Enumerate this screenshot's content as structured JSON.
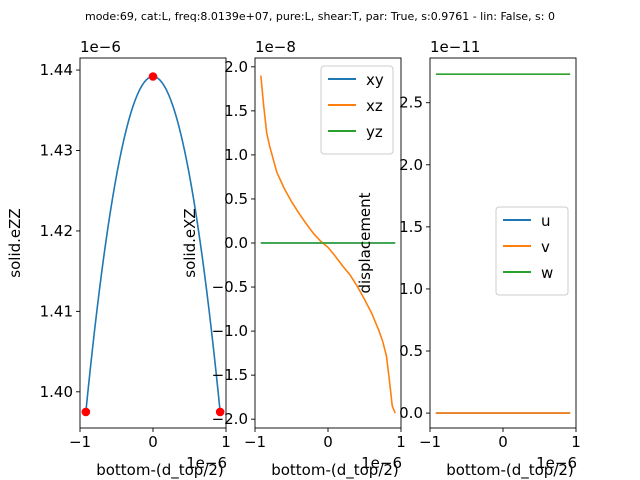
{
  "figure_title": "mode:69, cat:L, freq:8.0139e+07, pure:L, shear:T, par: True, s:0.9761 - lin: False, s: 0",
  "colors": {
    "blue": "#1f77b4",
    "orange": "#ff7f0e",
    "green": "#2ca02c",
    "marker": "#ff0000"
  },
  "chart_data": [
    {
      "type": "line",
      "xlabel": "bottom-(d_top/2)",
      "ylabel": "solid.eZZ",
      "x_offset_text": "1e−6",
      "y_offset_text": "1e−6",
      "xlim": [
        -1.0,
        1.0
      ],
      "ylim": [
        1.3955,
        1.4415
      ],
      "x_ticks": [
        -1,
        0,
        1
      ],
      "x_tick_labels": [
        "−1",
        "0",
        "1"
      ],
      "y_ticks": [
        1.4,
        1.41,
        1.42,
        1.43,
        1.44
      ],
      "y_tick_labels": [
        "1.40",
        "1.41",
        "1.42",
        "1.43",
        "1.44"
      ],
      "series": [
        {
          "color": "blue",
          "kind": "parabola",
          "x_range": [
            -0.92,
            0.92
          ],
          "peak": 1.4392,
          "end": 1.3975
        },
        {
          "color": "marker",
          "kind": "markers",
          "points": [
            [
              -0.92,
              1.3975
            ],
            [
              0.0,
              1.4392
            ],
            [
              0.92,
              1.3975
            ]
          ]
        }
      ]
    },
    {
      "type": "line",
      "xlabel": "bottom-(d_top/2)",
      "ylabel": "solid.eXZ",
      "x_offset_text": "1e−6",
      "y_offset_text": "1e−8",
      "xlim": [
        -1.0,
        1.0
      ],
      "ylim": [
        -2.1,
        2.1
      ],
      "x_ticks": [
        -1,
        0,
        1
      ],
      "x_tick_labels": [
        "−1",
        "0",
        "1"
      ],
      "y_ticks": [
        -2.0,
        -1.5,
        -1.0,
        -0.5,
        0.0,
        0.5,
        1.0,
        1.5,
        2.0
      ],
      "y_tick_labels": [
        "−2.0",
        "−1.5",
        "−1.0",
        "−0.5",
        "0.0",
        "0.5",
        "1.0",
        "1.5",
        "2.0"
      ],
      "legend": {
        "position": "upper-right",
        "entries": [
          {
            "label": "xy",
            "color": "blue"
          },
          {
            "label": "xz",
            "color": "orange"
          },
          {
            "label": "yz",
            "color": "green"
          }
        ]
      },
      "series": [
        {
          "name": "xy",
          "color": "blue",
          "x": [
            -0.92,
            0.92
          ],
          "y": [
            0.0,
            0.0
          ]
        },
        {
          "name": "xz",
          "color": "orange",
          "x": [
            -0.92,
            -0.88,
            -0.84,
            -0.8,
            -0.75,
            -0.7,
            -0.6,
            -0.5,
            -0.4,
            -0.3,
            -0.2,
            -0.1,
            0.0,
            0.1,
            0.2,
            0.3,
            0.4,
            0.5,
            0.6,
            0.7,
            0.75,
            0.8,
            0.84,
            0.88,
            0.92
          ],
          "y": [
            1.9,
            1.55,
            1.25,
            1.1,
            0.95,
            0.8,
            0.62,
            0.47,
            0.34,
            0.22,
            0.11,
            0.02,
            -0.05,
            -0.15,
            -0.26,
            -0.36,
            -0.49,
            -0.64,
            -0.8,
            -1.0,
            -1.12,
            -1.28,
            -1.55,
            -1.85,
            -1.93
          ]
        },
        {
          "name": "yz",
          "color": "green",
          "x": [
            -0.92,
            0.92
          ],
          "y": [
            0.0,
            0.0
          ]
        }
      ]
    },
    {
      "type": "line",
      "xlabel": "bottom-(d_top/2)",
      "ylabel": "displacement",
      "x_offset_text": "1e−6",
      "y_offset_text": "1e−11",
      "xlim": [
        -1.0,
        1.0
      ],
      "ylim": [
        -0.12,
        2.86
      ],
      "x_ticks": [
        -1,
        0,
        1
      ],
      "x_tick_labels": [
        "−1",
        "0",
        "1"
      ],
      "y_ticks": [
        0.0,
        0.5,
        1.0,
        1.5,
        2.0,
        2.5
      ],
      "y_tick_labels": [
        "0.0",
        "0.5",
        "1.0",
        "1.5",
        "2.0",
        "2.5"
      ],
      "legend": {
        "position": "center-right",
        "entries": [
          {
            "label": "u",
            "color": "blue"
          },
          {
            "label": "v",
            "color": "orange"
          },
          {
            "label": "w",
            "color": "green"
          }
        ]
      },
      "series": [
        {
          "name": "u",
          "color": "blue",
          "x": [
            -0.92,
            0.92
          ],
          "y": [
            0.0,
            0.0
          ]
        },
        {
          "name": "v",
          "color": "orange",
          "x": [
            -0.92,
            0.92
          ],
          "y": [
            0.0,
            0.0
          ]
        },
        {
          "name": "w",
          "color": "green",
          "x": [
            -0.92,
            0.92
          ],
          "y": [
            2.73,
            2.73
          ]
        }
      ]
    }
  ]
}
